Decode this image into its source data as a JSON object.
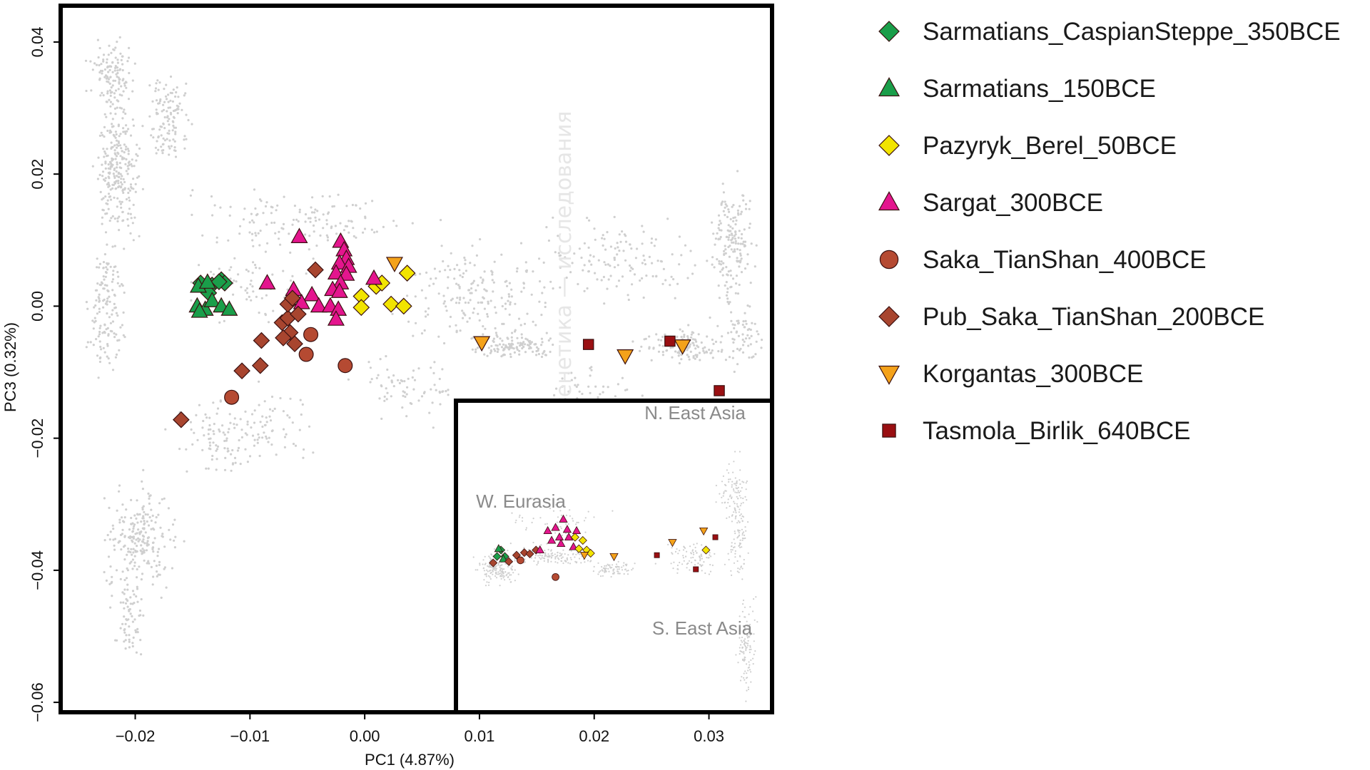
{
  "watermark": "Археология, история, генетика — исследования",
  "chart_data": {
    "type": "scatter",
    "xlabel": "PC1 (4.87%)",
    "ylabel": "PC3 (0.32%)",
    "xlim": [
      -0.0265,
      0.0355
    ],
    "ylim": [
      -0.0615,
      0.0455
    ],
    "x_ticks": [
      -0.02,
      -0.01,
      0.0,
      0.01,
      0.02,
      0.03
    ],
    "x_tick_labels": [
      "−0.02",
      "−0.01",
      "0.00",
      "0.01",
      "0.02",
      "0.03"
    ],
    "y_ticks": [
      0.04,
      0.02,
      0.0,
      -0.02,
      -0.04,
      -0.06
    ],
    "y_tick_labels": [
      "0.04",
      "0.02",
      "0.00",
      "−0.02",
      "−0.04",
      "−0.06"
    ],
    "grid": false,
    "legend_position": "right",
    "background_color": "#cfcfcf",
    "series": [
      {
        "name": "Sarmatians_CaspianSteppe_350BCE",
        "marker": "diamond",
        "color": "#1a9e4a",
        "points": [
          [
            -0.0143,
            0.0035
          ],
          [
            -0.0133,
            0.0032
          ],
          [
            -0.0125,
            0.004
          ],
          [
            -0.0122,
            0.0035
          ],
          [
            -0.0127,
            0.0037
          ],
          [
            -0.0136,
            0.002
          ]
        ]
      },
      {
        "name": "Sarmatians_150BCE",
        "marker": "triangle",
        "color": "#1a9e4a",
        "points": [
          [
            -0.0145,
            0.003
          ],
          [
            -0.0137,
            0.0036
          ],
          [
            -0.0146,
            0.0
          ],
          [
            -0.0139,
            -0.0005
          ],
          [
            -0.0133,
            0.0008
          ],
          [
            -0.0125,
            0.0
          ],
          [
            -0.0118,
            -0.0005
          ],
          [
            -0.0144,
            -0.0008
          ]
        ]
      },
      {
        "name": "Pazyryk_Berel_50BCE",
        "marker": "diamond",
        "color": "#f2e400",
        "points": [
          [
            -0.0003,
            0.0015
          ],
          [
            0.001,
            0.003
          ],
          [
            0.0015,
            0.0035
          ],
          [
            0.0037,
            0.005
          ],
          [
            0.0023,
            0.0003
          ],
          [
            0.0034,
            0.0
          ],
          [
            -0.0003,
            -0.0002
          ]
        ]
      },
      {
        "name": "Sargat_300BCE",
        "marker": "triangle",
        "color": "#e4158e",
        "points": [
          [
            -0.0057,
            0.0105
          ],
          [
            -0.0021,
            0.0098
          ],
          [
            -0.0018,
            0.0085
          ],
          [
            -0.0016,
            0.0072
          ],
          [
            -0.0022,
            0.0065
          ],
          [
            -0.0014,
            0.006
          ],
          [
            -0.0025,
            0.005
          ],
          [
            -0.0016,
            0.0048
          ],
          [
            -0.0021,
            0.0035
          ],
          [
            -0.0028,
            0.0025
          ],
          [
            -0.0022,
            0.0022
          ],
          [
            -0.0085,
            0.0035
          ],
          [
            -0.0062,
            0.0025
          ],
          [
            -0.0046,
            0.0017
          ],
          [
            -0.0055,
            0.0005
          ],
          [
            -0.004,
            0.0
          ],
          [
            -0.003,
            0.0
          ],
          [
            -0.0023,
            -0.0005
          ],
          [
            -0.0025,
            -0.002
          ],
          [
            0.0008,
            0.0042
          ]
        ]
      },
      {
        "name": "Saka_TianShan_400BCE",
        "marker": "circle",
        "color": "#b54a32",
        "points": [
          [
            -0.0116,
            -0.0138
          ],
          [
            -0.0047,
            -0.0043
          ],
          [
            -0.0051,
            -0.0073
          ],
          [
            -0.0017,
            -0.009
          ]
        ]
      },
      {
        "name": "Pub_Saka_TianShan_200BCE",
        "marker": "diamond",
        "color": "#a8452f",
        "points": [
          [
            -0.016,
            -0.0172
          ],
          [
            -0.0107,
            -0.0098
          ],
          [
            -0.0091,
            -0.009
          ],
          [
            -0.009,
            -0.0052
          ],
          [
            -0.0072,
            -0.0025
          ],
          [
            -0.0067,
            -0.0018
          ],
          [
            -0.0065,
            -0.004
          ],
          [
            -0.0071,
            -0.0048
          ],
          [
            -0.0061,
            -0.0057
          ],
          [
            -0.0058,
            -0.0012
          ],
          [
            -0.0067,
            0.0003
          ],
          [
            -0.0063,
            0.0012
          ],
          [
            -0.0043,
            0.0055
          ]
        ]
      },
      {
        "name": "Korgantas_300BCE",
        "marker": "triangle-down",
        "color": "#f4a21a",
        "points": [
          [
            0.0026,
            0.0065
          ],
          [
            0.0102,
            -0.0055
          ],
          [
            0.0227,
            -0.0075
          ],
          [
            0.0277,
            -0.006
          ]
        ]
      },
      {
        "name": "Tasmola_Birlik_640BCE",
        "marker": "square",
        "color": "#9a0f12",
        "points": [
          [
            0.0195,
            -0.0058
          ],
          [
            0.0266,
            -0.0053
          ],
          [
            0.0309,
            -0.0128
          ]
        ]
      }
    ],
    "inset": {
      "region_labels": [
        "N. East Asia",
        "W. Eurasia",
        "S. East Asia"
      ],
      "points": [
        {
          "series": "Sarmatians_CaspianSteppe_350BCE",
          "x": 0.05,
          "y": 0.0
        },
        {
          "series": "Sarmatians_CaspianSteppe_350BCE",
          "x": 0.055,
          "y": 0.01
        },
        {
          "series": "Sarmatians_CaspianSteppe_350BCE",
          "x": 0.06,
          "y": 0.0
        },
        {
          "series": "Sarmatians_150BCE",
          "x": 0.052,
          "y": 0.012
        },
        {
          "series": "Sarmatians_150BCE",
          "x": 0.058,
          "y": -0.004
        },
        {
          "series": "Pub_Saka_TianShan_200BCE",
          "x": 0.045,
          "y": -0.01
        },
        {
          "series": "Pub_Saka_TianShan_200BCE",
          "x": 0.065,
          "y": -0.008
        },
        {
          "series": "Pub_Saka_TianShan_200BCE",
          "x": 0.075,
          "y": 0.002
        },
        {
          "series": "Pub_Saka_TianShan_200BCE",
          "x": 0.085,
          "y": 0.006
        },
        {
          "series": "Pub_Saka_TianShan_200BCE",
          "x": 0.092,
          "y": 0.004
        },
        {
          "series": "Pub_Saka_TianShan_200BCE",
          "x": 0.1,
          "y": 0.01
        },
        {
          "series": "Saka_TianShan_400BCE",
          "x": 0.08,
          "y": -0.006
        },
        {
          "series": "Saka_TianShan_400BCE",
          "x": 0.125,
          "y": -0.032
        },
        {
          "series": "Sargat_300BCE",
          "x": 0.105,
          "y": 0.01
        },
        {
          "series": "Sargat_300BCE",
          "x": 0.115,
          "y": 0.04
        },
        {
          "series": "Sargat_300BCE",
          "x": 0.12,
          "y": 0.025
        },
        {
          "series": "Sargat_300BCE",
          "x": 0.125,
          "y": 0.045
        },
        {
          "series": "Sargat_300BCE",
          "x": 0.13,
          "y": 0.03
        },
        {
          "series": "Sargat_300BCE",
          "x": 0.132,
          "y": 0.02
        },
        {
          "series": "Sargat_300BCE",
          "x": 0.135,
          "y": 0.058
        },
        {
          "series": "Sargat_300BCE",
          "x": 0.14,
          "y": 0.042
        },
        {
          "series": "Sargat_300BCE",
          "x": 0.142,
          "y": 0.03
        },
        {
          "series": "Sargat_300BCE",
          "x": 0.148,
          "y": 0.015
        },
        {
          "series": "Sargat_300BCE",
          "x": 0.152,
          "y": 0.04
        },
        {
          "series": "Pazyryk_Berel_50BCE",
          "x": 0.15,
          "y": 0.03
        },
        {
          "series": "Pazyryk_Berel_50BCE",
          "x": 0.155,
          "y": 0.012
        },
        {
          "series": "Pazyryk_Berel_50BCE",
          "x": 0.16,
          "y": 0.025
        },
        {
          "series": "Pazyryk_Berel_50BCE",
          "x": 0.165,
          "y": 0.01
        },
        {
          "series": "Pazyryk_Berel_50BCE",
          "x": 0.17,
          "y": 0.005
        },
        {
          "series": "Korgantas_300BCE",
          "x": 0.162,
          "y": 0.002
        },
        {
          "series": "Korgantas_300BCE",
          "x": 0.2,
          "y": 0.0
        },
        {
          "series": "Korgantas_300BCE",
          "x": 0.275,
          "y": 0.022
        },
        {
          "series": "Korgantas_300BCE",
          "x": 0.315,
          "y": 0.04
        },
        {
          "series": "Tasmola_Birlik_640BCE",
          "x": 0.255,
          "y": 0.002
        },
        {
          "series": "Tasmola_Birlik_640BCE",
          "x": 0.305,
          "y": -0.02
        },
        {
          "series": "Tasmola_Birlik_640BCE",
          "x": 0.33,
          "y": 0.03
        },
        {
          "series": "Pazyryk_Berel_50BCE",
          "x": 0.318,
          "y": 0.01
        }
      ]
    }
  }
}
